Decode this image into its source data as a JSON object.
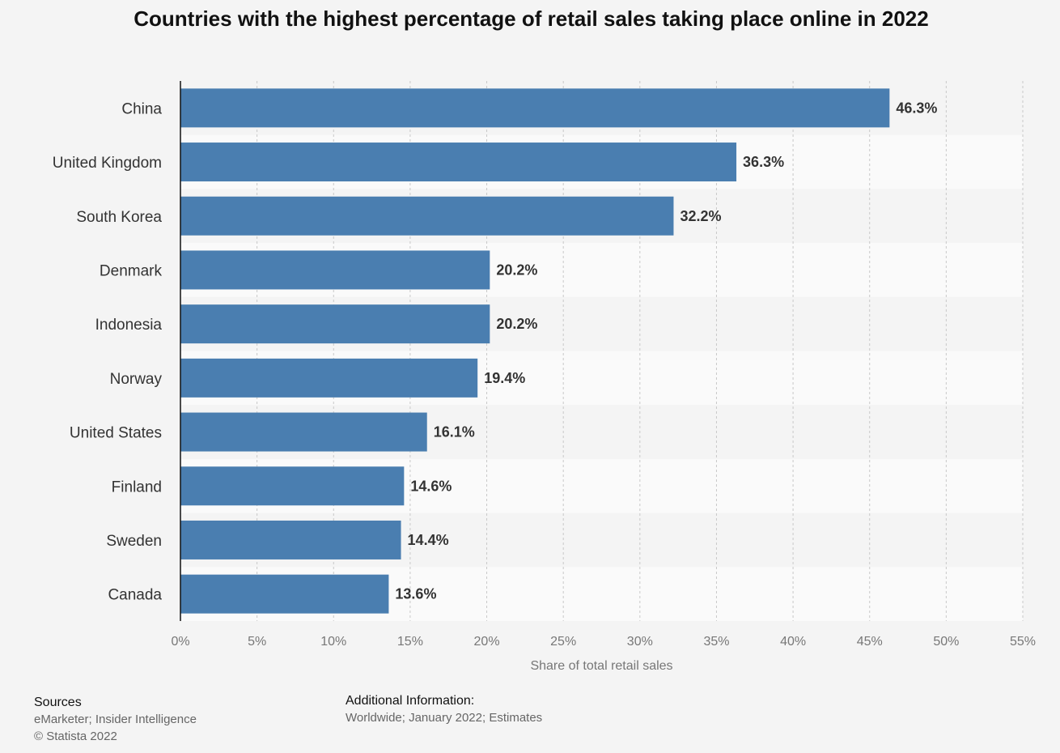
{
  "chart_data": {
    "type": "bar",
    "orientation": "horizontal",
    "title": "Countries with the highest percentage of retail sales taking place online in 2022",
    "categories": [
      "China",
      "United Kingdom",
      "South Korea",
      "Denmark",
      "Indonesia",
      "Norway",
      "United States",
      "Finland",
      "Sweden",
      "Canada"
    ],
    "values": [
      46.3,
      36.3,
      32.2,
      20.2,
      20.2,
      19.4,
      16.1,
      14.6,
      14.4,
      13.6
    ],
    "value_labels": [
      "46.3%",
      "36.3%",
      "32.2%",
      "20.2%",
      "20.2%",
      "19.4%",
      "16.1%",
      "14.6%",
      "14.4%",
      "13.6%"
    ],
    "xlabel": "Share of total retail sales",
    "ylabel": "",
    "xlim": [
      0,
      55
    ],
    "xticks": [
      0,
      5,
      10,
      15,
      20,
      25,
      30,
      35,
      40,
      45,
      50,
      55
    ],
    "xtick_labels": [
      "0%",
      "5%",
      "10%",
      "15%",
      "20%",
      "25%",
      "30%",
      "35%",
      "40%",
      "45%",
      "50%",
      "55%"
    ],
    "grid": true,
    "bar_color": "#4a7eb0"
  },
  "footer": {
    "sources_heading": "Sources",
    "sources_text": "eMarketer; Insider Intelligence",
    "copyright": "© Statista 2022",
    "additional_heading": "Additional Information:",
    "additional_text": "Worldwide; January 2022; Estimates"
  }
}
